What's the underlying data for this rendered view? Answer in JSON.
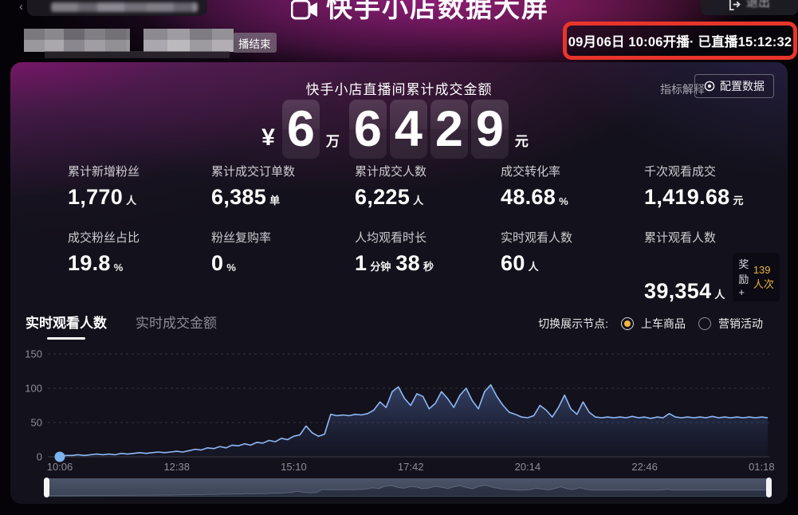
{
  "topbar": {
    "title": "快手小店数据大屏",
    "exit_label": "退出"
  },
  "stream_header": {
    "ended_badge": "播结束",
    "session_info": "09月06日 10:06开播· 已直播15:12:32"
  },
  "panel": {
    "metric_help_label": "指标解释",
    "configure_label": "配置数据",
    "gmv": {
      "title": "快手小店直播间累计成交金额",
      "currency": "¥",
      "wan_digits": [
        "6"
      ],
      "wan_unit": "万",
      "yuan_digits": [
        "6",
        "4",
        "2",
        "9"
      ],
      "yuan_unit": "元"
    },
    "metrics": [
      {
        "label": "累计新增粉丝",
        "value": "1,770",
        "unit": "人"
      },
      {
        "label": "累计成交订单数",
        "value": "6,385",
        "unit": "单"
      },
      {
        "label": "累计成交人数",
        "value": "6,225",
        "unit": "人"
      },
      {
        "label": "成交转化率",
        "value": "48.68",
        "unit": "%"
      },
      {
        "label": "千次观看成交",
        "value": "1,419.68",
        "unit": "元"
      },
      {
        "label": "成交粉丝占比",
        "value": "19.8",
        "unit": "%"
      },
      {
        "label": "粉丝复购率",
        "value": "0",
        "unit": "%"
      },
      {
        "label": "人均观看时长",
        "parts": [
          {
            "v": "1",
            "u": "分钟"
          },
          {
            "v": "38",
            "u": "秒"
          }
        ]
      },
      {
        "label": "实时观看人数",
        "value": "60",
        "unit": "人"
      },
      {
        "label": "累计观看人数",
        "value": "39,354",
        "unit": "人",
        "badge": {
          "prefix": "奖励+",
          "highlight": "139人次"
        }
      }
    ],
    "tabs": [
      {
        "label": "实时观看人数",
        "active": true
      },
      {
        "label": "实时成交金额",
        "active": false
      }
    ],
    "node_toggle": {
      "label": "切换展示节点:",
      "options": [
        {
          "label": "上车商品",
          "selected": true
        },
        {
          "label": "营销活动",
          "selected": false
        }
      ]
    }
  },
  "colors": {
    "annotation_red": "#e8352b",
    "reward_gold": "#e7b43e",
    "radio_selected_gold": "#f0b63c",
    "line_blue": "#8fb8f5",
    "dot_blue": "#7db4f0",
    "axis_text_grey": "#8e8e99"
  },
  "chart_data": {
    "type": "line",
    "title": "实时观看人数",
    "xlabel": "",
    "ylabel": "",
    "ylim": [
      0,
      150
    ],
    "y_ticks": [
      0,
      50,
      100,
      150
    ],
    "grid": "dashed-horizontal",
    "legend_position": "none",
    "x_start_minutes": 606,
    "x_end_minutes": 1528,
    "sample_interval_minutes": 8,
    "x_tick_minutes": [
      606,
      758,
      910,
      1062,
      1214,
      1366,
      1518
    ],
    "x_tick_labels": [
      "10:06",
      "12:38",
      "15:10",
      "17:42",
      "20:14",
      "22:46",
      "01:18"
    ],
    "values": [
      0,
      2,
      2,
      3,
      2,
      3,
      4,
      3,
      4,
      3,
      5,
      4,
      5,
      6,
      5,
      6,
      7,
      6,
      7,
      8,
      7,
      9,
      11,
      10,
      13,
      12,
      15,
      13,
      17,
      16,
      19,
      17,
      21,
      20,
      24,
      22,
      27,
      25,
      30,
      32,
      45,
      35,
      30,
      33,
      62,
      60,
      61,
      60,
      62,
      61,
      63,
      68,
      80,
      72,
      95,
      102,
      85,
      75,
      92,
      88,
      70,
      78,
      95,
      85,
      72,
      90,
      100,
      82,
      70,
      95,
      105,
      88,
      75,
      65,
      62,
      58,
      57,
      60,
      75,
      68,
      58,
      72,
      90,
      70,
      62,
      80,
      65,
      58,
      57,
      58,
      57,
      58,
      57,
      59,
      57,
      58,
      56,
      58,
      57,
      63,
      58,
      57,
      58,
      57,
      58,
      57,
      59,
      57,
      58,
      57,
      58,
      57,
      58,
      57,
      58,
      57
    ]
  }
}
